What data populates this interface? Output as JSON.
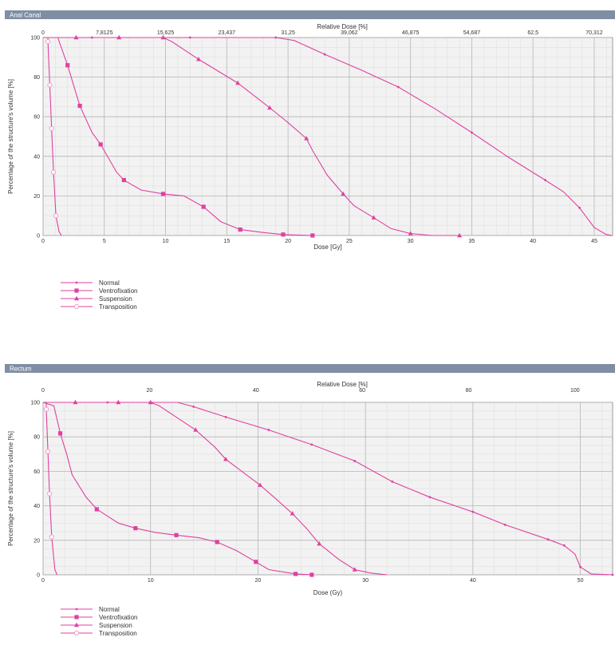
{
  "colors": {
    "series": "#e040a0",
    "title_bar": "#7f8ea3"
  },
  "chart_data": [
    {
      "type": "line",
      "title": "Anal Canal",
      "xlabel": "Dose [Gy]",
      "ylabel": "Percentage of the structure's volume  [%]",
      "x2label": "Relative Dose   [%]",
      "xlim": [
        0,
        46.5
      ],
      "ylim": [
        0,
        100
      ],
      "x_ticks": [
        "0",
        "5",
        "10",
        "15",
        "20",
        "25",
        "30",
        "35",
        "40",
        "45"
      ],
      "y_ticks": [
        "0",
        "20",
        "40",
        "60",
        "80",
        "100"
      ],
      "x2_ticks": [
        "0",
        "7,8125",
        "15,625",
        "23,437",
        "31,25",
        "39,062",
        "46,875",
        "54,687",
        "62,5",
        "70,312"
      ],
      "grid": true,
      "legend": "bottom-left",
      "series": [
        {
          "name": "Normal",
          "marker": "dot",
          "points": [
            [
              0,
              100
            ],
            [
              1,
              100
            ],
            [
              4,
              100
            ],
            [
              8,
              100
            ],
            [
              12,
              100
            ],
            [
              16,
              100
            ],
            [
              19,
              100
            ],
            [
              20.5,
              98.5
            ],
            [
              23,
              91.5
            ],
            [
              26,
              83.5
            ],
            [
              29,
              75
            ],
            [
              32,
              64
            ],
            [
              35,
              52
            ],
            [
              38,
              39.5
            ],
            [
              41,
              28
            ],
            [
              42.5,
              22
            ],
            [
              43.8,
              14
            ],
            [
              45,
              4
            ],
            [
              46,
              0.5
            ],
            [
              46.5,
              0
            ]
          ]
        },
        {
          "name": "Ventrofixation",
          "marker": "square",
          "points": [
            [
              0,
              100
            ],
            [
              1.2,
              100
            ],
            [
              2,
              86
            ],
            [
              3,
              65.5
            ],
            [
              4,
              52
            ],
            [
              4.7,
              46
            ],
            [
              6,
              32
            ],
            [
              6.6,
              28
            ],
            [
              8,
              23
            ],
            [
              9.8,
              21
            ],
            [
              11.5,
              20
            ],
            [
              13.1,
              14.5
            ],
            [
              14.5,
              7
            ],
            [
              16.1,
              3
            ],
            [
              18,
              1.5
            ],
            [
              19.6,
              0.5
            ],
            [
              21,
              0.2
            ],
            [
              22,
              0
            ]
          ]
        },
        {
          "name": "Suspension",
          "marker": "triangle",
          "points": [
            [
              0,
              100
            ],
            [
              2.7,
              100
            ],
            [
              6.2,
              100
            ],
            [
              9.8,
              100
            ],
            [
              10.5,
              98
            ],
            [
              12.7,
              89
            ],
            [
              15.9,
              77
            ],
            [
              18.5,
              64.5
            ],
            [
              20,
              57
            ],
            [
              21.5,
              49
            ],
            [
              22,
              43
            ],
            [
              23.2,
              30.5
            ],
            [
              24.5,
              21
            ],
            [
              25.4,
              15
            ],
            [
              27,
              9
            ],
            [
              28.4,
              3.5
            ],
            [
              30,
              1
            ],
            [
              31.8,
              0
            ],
            [
              34,
              0
            ]
          ]
        },
        {
          "name": "Transposition",
          "marker": "circle",
          "points": [
            [
              0.4,
              100
            ],
            [
              0.4,
              98
            ],
            [
              0.55,
              76
            ],
            [
              0.7,
              54
            ],
            [
              0.85,
              32
            ],
            [
              1.05,
              10
            ],
            [
              1.3,
              2
            ],
            [
              1.5,
              0
            ]
          ]
        }
      ]
    },
    {
      "type": "line",
      "title": "Rectum",
      "xlabel": "Dose (Gy)",
      "ylabel": "Percentage of the structure's volume  [%]",
      "x2label": "Relative Dose    [%]",
      "xlim": [
        0,
        53
      ],
      "ylim": [
        0,
        100
      ],
      "x_ticks": [
        "0",
        "10",
        "20",
        "30",
        "40",
        "50"
      ],
      "y_ticks": [
        "0",
        "20",
        "40",
        "60",
        "80",
        "100"
      ],
      "x2_ticks": [
        "0",
        "20",
        "40",
        "60",
        "80",
        "100"
      ],
      "grid": true,
      "legend": "bottom-left",
      "series": [
        {
          "name": "Normal",
          "marker": "dot",
          "points": [
            [
              0,
              100
            ],
            [
              2,
              100
            ],
            [
              6,
              100
            ],
            [
              10,
              100
            ],
            [
              12.5,
              100
            ],
            [
              14,
              97.5
            ],
            [
              17,
              91.5
            ],
            [
              21,
              84
            ],
            [
              25,
              75.5
            ],
            [
              29,
              66
            ],
            [
              32.5,
              54
            ],
            [
              36,
              45
            ],
            [
              40,
              36.5
            ],
            [
              43,
              29
            ],
            [
              47,
              20.5
            ],
            [
              48.5,
              17
            ],
            [
              49.5,
              12
            ],
            [
              50,
              4.5
            ],
            [
              51,
              0.5
            ],
            [
              53,
              0
            ]
          ]
        },
        {
          "name": "Ventrofixation",
          "marker": "square",
          "points": [
            [
              0,
              100
            ],
            [
              1,
              98
            ],
            [
              1.6,
              82
            ],
            [
              2.2,
              70
            ],
            [
              2.7,
              58
            ],
            [
              4,
              45
            ],
            [
              5,
              38
            ],
            [
              7,
              30
            ],
            [
              8.6,
              27
            ],
            [
              10.5,
              24.5
            ],
            [
              12.4,
              23
            ],
            [
              14.5,
              21.5
            ],
            [
              16.2,
              19
            ],
            [
              18,
              14
            ],
            [
              19.8,
              7.5
            ],
            [
              21,
              3
            ],
            [
              23.5,
              0.5
            ],
            [
              25,
              0
            ]
          ]
        },
        {
          "name": "Suspension",
          "marker": "triangle",
          "points": [
            [
              0,
              100
            ],
            [
              3,
              100
            ],
            [
              7,
              100
            ],
            [
              10,
              100
            ],
            [
              10.8,
              98
            ],
            [
              12.5,
              91
            ],
            [
              14.2,
              84
            ],
            [
              16,
              74
            ],
            [
              17,
              67
            ],
            [
              18.5,
              60
            ],
            [
              20.2,
              52
            ],
            [
              21.5,
              45
            ],
            [
              23.2,
              35.5
            ],
            [
              24.5,
              27
            ],
            [
              25.7,
              18
            ],
            [
              27.5,
              9
            ],
            [
              29,
              3
            ],
            [
              30.5,
              1
            ],
            [
              32,
              0
            ]
          ]
        },
        {
          "name": "Transposition",
          "marker": "circle",
          "points": [
            [
              0.3,
              100
            ],
            [
              0.3,
              96
            ],
            [
              0.45,
              71.5
            ],
            [
              0.6,
              47
            ],
            [
              0.8,
              22
            ],
            [
              1.1,
              3
            ],
            [
              1.3,
              0
            ]
          ]
        }
      ]
    }
  ]
}
